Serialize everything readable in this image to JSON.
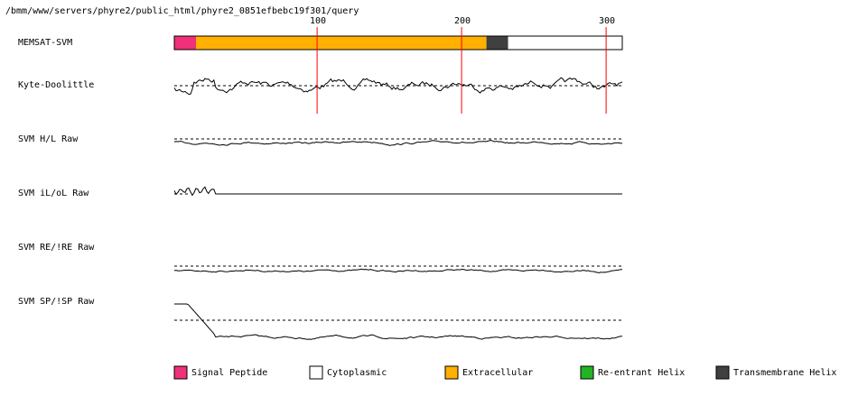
{
  "header": {
    "path": "/bmm/www/servers/phyre2/public_html/phyre2_0851efbebc19f301/query"
  },
  "ruler": {
    "ticks": [
      100,
      200,
      300
    ],
    "sequence_length": 310
  },
  "tracks": [
    {
      "label": "MEMSAT-SVM",
      "kind": "topology"
    },
    {
      "label": "Kyte-Doolittle",
      "kind": "profile"
    },
    {
      "label": "SVM H/L Raw",
      "kind": "profile"
    },
    {
      "label": "SVM iL/oL Raw",
      "kind": "profile"
    },
    {
      "label": "SVM RE/!RE Raw",
      "kind": "profile"
    },
    {
      "label": "SVM SP/!SP Raw",
      "kind": "profile"
    }
  ],
  "topology": [
    {
      "type": "signal_peptide",
      "start": 1,
      "end": 15
    },
    {
      "type": "extracellular",
      "start": 16,
      "end": 216
    },
    {
      "type": "transmembrane_helix",
      "start": 217,
      "end": 231
    },
    {
      "type": "cytoplasmic",
      "start": 232,
      "end": 310
    }
  ],
  "legend": [
    {
      "key": "signal_peptide",
      "label": "Signal Peptide",
      "color": "#f0307a"
    },
    {
      "key": "cytoplasmic",
      "label": "Cytoplasmic",
      "color": "#ffffff"
    },
    {
      "key": "extracellular",
      "label": "Extracellular",
      "color": "#ffb000"
    },
    {
      "key": "reentrant_helix",
      "label": "Re-entrant Helix",
      "color": "#22b422"
    },
    {
      "key": "transmembrane_helix",
      "label": "Transmembrane Helix",
      "color": "#404040"
    }
  ],
  "colors": {
    "ruler_line": "#ff0000",
    "trace": "#000000",
    "threshold": "#000000"
  }
}
